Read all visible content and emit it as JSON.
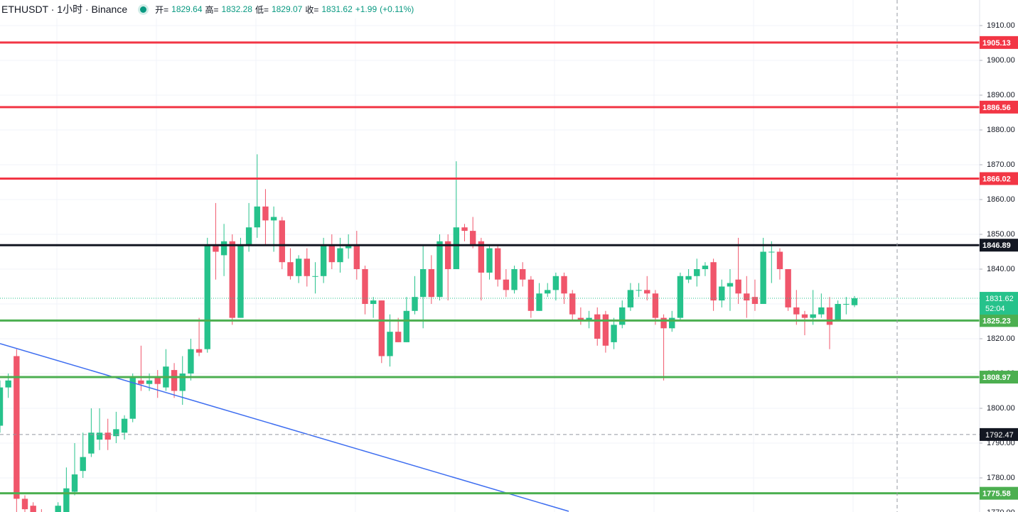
{
  "header": {
    "symbol": "ETHUSDT · 1小时 · Binance",
    "open_label": "开=",
    "high_label": "高=",
    "low_label": "低=",
    "close_label": "收=",
    "change": "+1.99",
    "change_percent": "(+0.11%)"
  },
  "chart_data": {
    "type": "candlestick",
    "up_color": "#26c28b",
    "down_color": "#f0566b",
    "open": [
      1795,
      1806,
      1815,
      1774,
      1772,
      1769,
      1767,
      1766,
      1770,
      1776,
      1782,
      1787,
      1791,
      1793,
      1792,
      1793,
      1797,
      1808,
      1807,
      1809,
      1806,
      1811,
      1805,
      1810,
      1817,
      1817,
      1847,
      1844,
      1848,
      1826,
      1847,
      1852,
      1858,
      1854,
      1854,
      1842,
      1838,
      1843,
      1838,
      1838,
      1847,
      1842,
      1846,
      1847,
      1840,
      1830,
      1831,
      1815,
      1822,
      1819,
      1828,
      1832,
      1840,
      1832,
      1848,
      1840,
      1852,
      1851,
      1848,
      1839,
      1846,
      1837,
      1834,
      1840,
      1837,
      1828,
      1833,
      1834,
      1838,
      1833,
      1826,
      1825,
      1827,
      1827,
      1819,
      1824,
      1829,
      1834,
      1834,
      1833,
      1826,
      1823,
      1826,
      1837,
      1838,
      1840,
      1842,
      1831,
      1835,
      1837,
      1833,
      1832,
      1830,
      1845,
      1845,
      1840,
      1829,
      1827,
      1826,
      1827,
      1829,
      1825,
      1830,
      1829.64
    ],
    "high": [
      1808,
      1810,
      1817,
      1775,
      1773,
      1771,
      1769,
      1773,
      1783,
      1790,
      1793,
      1800,
      1800,
      1797,
      1799,
      1798,
      1810,
      1818,
      1810,
      1811,
      1817,
      1813,
      1815,
      1820,
      1826,
      1849,
      1859,
      1853,
      1850,
      1849,
      1859,
      1873,
      1863,
      1858,
      1855,
      1846,
      1844,
      1846,
      1842,
      1849,
      1850,
      1849,
      1850,
      1851,
      1841,
      1832,
      1831,
      1827,
      1826,
      1832,
      1838,
      1847,
      1844,
      1850,
      1850,
      1871,
      1853,
      1855,
      1849,
      1847,
      1847,
      1840,
      1841,
      1842,
      1838,
      1836,
      1836,
      1839,
      1839,
      1834,
      1829,
      1828,
      1829,
      1828,
      1826,
      1831,
      1836,
      1836,
      1838,
      1834,
      1827,
      1828,
      1839,
      1840,
      1843,
      1842,
      1843,
      1837,
      1840,
      1849,
      1838,
      1837,
      1849,
      1848,
      1846,
      1840,
      1834,
      1828,
      1834,
      1833,
      1832,
      1831,
      1832,
      1832.28
    ],
    "low": [
      1793,
      1803,
      1770,
      1768,
      1766,
      1765,
      1764,
      1765,
      1769,
      1775,
      1780,
      1786,
      1788,
      1788,
      1790,
      1791,
      1796,
      1805,
      1805,
      1803,
      1805,
      1803,
      1801,
      1808,
      1815,
      1816,
      1837,
      1838,
      1824,
      1826,
      1845,
      1849,
      1847,
      1845,
      1840,
      1837,
      1836,
      1835,
      1833,
      1836,
      1840,
      1839,
      1843,
      1837,
      1827,
      1826,
      1813,
      1812,
      1819,
      1819,
      1827,
      1823,
      1830,
      1831,
      1831,
      1840,
      1848,
      1846,
      1831,
      1837,
      1835,
      1832,
      1833,
      1835,
      1826,
      1828,
      1832,
      1831,
      1830,
      1825,
      1824,
      1823,
      1818,
      1816,
      1817,
      1823,
      1828,
      1832,
      1831,
      1824,
      1808,
      1822,
      1825,
      1836,
      1835,
      1838,
      1828,
      1829,
      1828,
      1830,
      1826,
      1828,
      1830,
      1836,
      1837,
      1828,
      1824,
      1821,
      1824,
      1826,
      1817,
      1825,
      1827,
      1829.07
    ],
    "close": [
      1806,
      1808,
      1774,
      1771,
      1768,
      1766,
      1766,
      1772,
      1777,
      1781,
      1786,
      1793,
      1793,
      1791,
      1794,
      1797,
      1809,
      1807,
      1808,
      1807,
      1812,
      1805,
      1810,
      1817,
      1816,
      1847,
      1845,
      1848,
      1826,
      1847,
      1852,
      1858,
      1854,
      1855,
      1842,
      1838,
      1843,
      1838,
      1838,
      1847,
      1842,
      1846,
      1847,
      1840,
      1830,
      1831,
      1815,
      1822,
      1819,
      1828,
      1832,
      1840,
      1832,
      1848,
      1840,
      1852,
      1851,
      1847,
      1839,
      1846,
      1837,
      1834,
      1840,
      1837,
      1828,
      1833,
      1834,
      1838,
      1833,
      1827,
      1825,
      1826,
      1820,
      1818,
      1824,
      1829,
      1834,
      1834,
      1833,
      1826,
      1823,
      1826,
      1838,
      1838,
      1840,
      1841,
      1831,
      1835,
      1836,
      1833,
      1831,
      1830,
      1845,
      1845,
      1840,
      1829,
      1827,
      1826,
      1827,
      1829,
      1824,
      1830,
      1830,
      1831.62
    ],
    "ylim": [
      1770.2,
      1917.35
    ],
    "yticks": [
      {
        "value": 1770,
        "label": "1770.00"
      },
      {
        "value": 1780,
        "label": "1780.00"
      },
      {
        "value": 1790,
        "label": "1790.00"
      },
      {
        "value": 1800,
        "label": "1800.00"
      },
      {
        "value": 1810,
        "label": "1810.00"
      },
      {
        "value": 1820,
        "label": "1820.00"
      },
      {
        "value": 1830,
        "label": "1830.00"
      },
      {
        "value": 1840,
        "label": "1840.00"
      },
      {
        "value": 1850,
        "label": "1850.00"
      },
      {
        "value": 1860,
        "label": "1860.00"
      },
      {
        "value": 1870,
        "label": "1870.00"
      },
      {
        "value": 1880,
        "label": "1880.00"
      },
      {
        "value": 1890,
        "label": "1890.00"
      },
      {
        "value": 1900,
        "label": "1900.00"
      },
      {
        "value": 1910,
        "label": "1910.00"
      }
    ],
    "grid": true,
    "levels": [
      {
        "value": 1905.13,
        "color": "#f23645"
      },
      {
        "value": 1886.56,
        "color": "#f23645"
      },
      {
        "value": 1866.02,
        "color": "#f23645"
      },
      {
        "value": 1846.89,
        "color": "#131722"
      },
      {
        "value": 1825.23,
        "color": "#4caf50"
      },
      {
        "value": 1808.97,
        "color": "#4caf50"
      },
      {
        "value": 1775.58,
        "color": "#4caf50"
      }
    ],
    "countdown": "52:04",
    "crosshair": 1792.47,
    "trendline": [
      1818.6,
      1770.4
    ],
    "trendline_color": "#3d6df0"
  }
}
